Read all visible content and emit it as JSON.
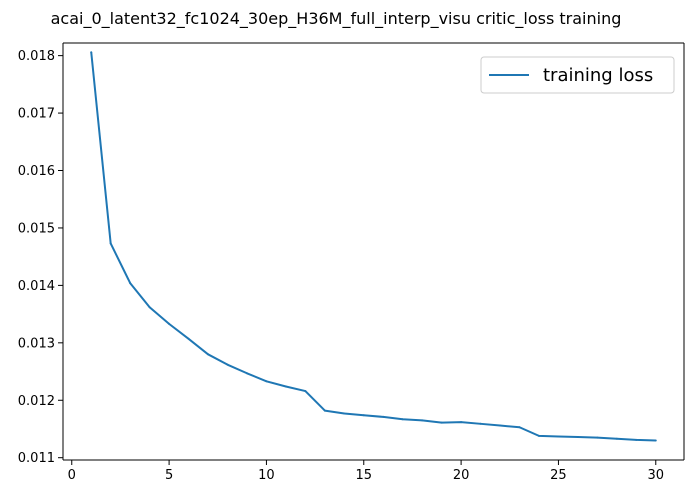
{
  "chart_data": {
    "type": "line",
    "title": "acai_0_latent32_fc1024_30ep_H36M_full_interp_visu critic_loss training",
    "xlabel": "",
    "ylabel": "",
    "xlim": [
      -0.45,
      31.45
    ],
    "ylim": [
      0.01096,
      0.01822
    ],
    "grid": false,
    "legend_position": "top-right",
    "x_ticks": [
      0,
      5,
      10,
      15,
      20,
      25,
      30
    ],
    "y_ticks": [
      0.011,
      0.012,
      0.013,
      0.014,
      0.015,
      0.016,
      0.017,
      0.018
    ],
    "x_tick_labels": [
      "0",
      "5",
      "10",
      "15",
      "20",
      "25",
      "30"
    ],
    "y_tick_labels": [
      "0.011",
      "0.012",
      "0.013",
      "0.014",
      "0.015",
      "0.016",
      "0.017",
      "0.018"
    ],
    "series": [
      {
        "name": "training loss",
        "color": "#1f77b4",
        "x": [
          1,
          2,
          3,
          4,
          5,
          6,
          7,
          8,
          9,
          10,
          11,
          12,
          13,
          14,
          15,
          16,
          17,
          18,
          19,
          20,
          21,
          22,
          23,
          24,
          25,
          26,
          27,
          28,
          29,
          30
        ],
        "y": [
          0.01806,
          0.01473,
          0.01404,
          0.01362,
          0.01333,
          0.01307,
          0.0128,
          0.01262,
          0.01247,
          0.01233,
          0.01224,
          0.01216,
          0.01182,
          0.01177,
          0.01174,
          0.01171,
          0.01167,
          0.01165,
          0.01161,
          0.01162,
          0.01159,
          0.01156,
          0.01153,
          0.01138,
          0.01137,
          0.01136,
          0.01135,
          0.01133,
          0.01131,
          0.0113
        ]
      }
    ]
  }
}
